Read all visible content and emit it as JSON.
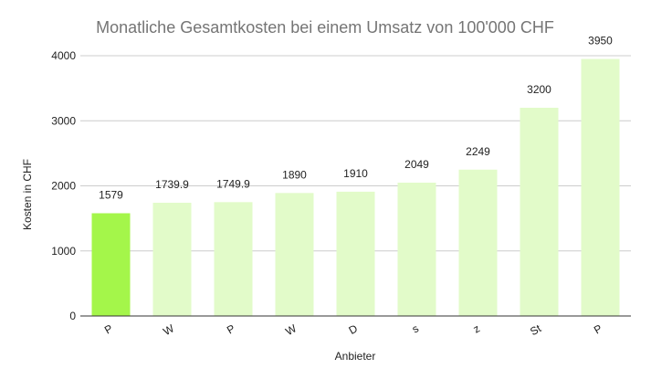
{
  "chart_data": {
    "type": "bar",
    "title": "Monatliche Gesamtkosten bei einem Umsatz von 100'000 CHF",
    "xlabel": "Anbieter",
    "ylabel": "Kosten in CHF",
    "categories": [
      "P",
      "W",
      "P",
      "W",
      "D",
      "s",
      "z",
      "St",
      "P"
    ],
    "values": [
      1579,
      1739.9,
      1749.9,
      1890,
      1910,
      2049,
      2249,
      3200,
      3950
    ],
    "data_labels": [
      "1579",
      "1739.9",
      "1749.9",
      "1890",
      "1910",
      "2049",
      "2249",
      "3200",
      "3950"
    ],
    "ylim": [
      0,
      4000
    ],
    "yticks": [
      "0",
      "1000",
      "2000",
      "3000",
      "4000"
    ],
    "grid": true,
    "legend": "none",
    "highlight_index": 0,
    "colors": {
      "bar": "#e2fbc9",
      "highlight": "#a4f64a",
      "grid": "#cccccc",
      "axis": "#333333",
      "title": "#757575",
      "text": "#222222"
    }
  }
}
